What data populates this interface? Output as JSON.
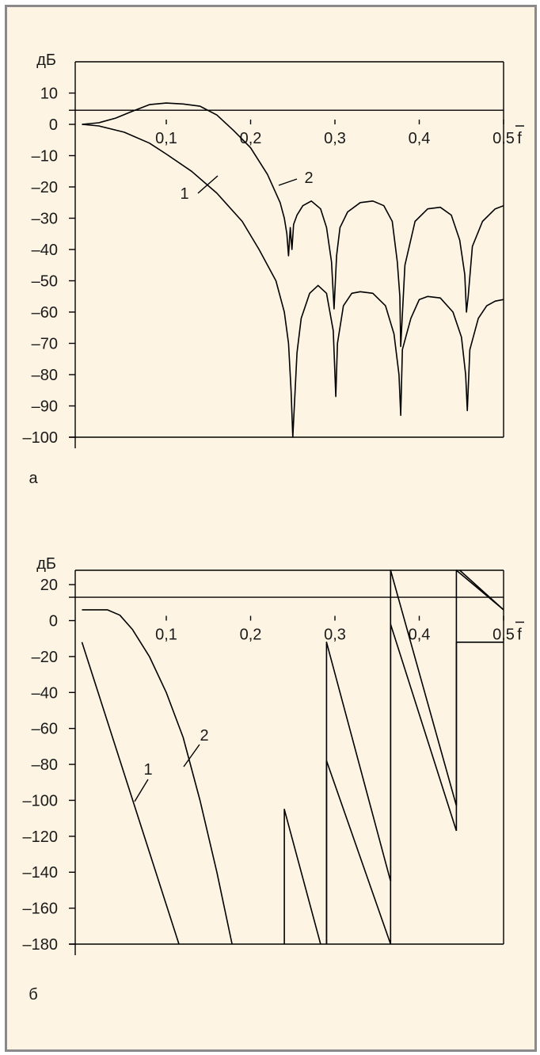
{
  "chart_data": [
    {
      "type": "line",
      "panel_label": "а",
      "ylabel": "дБ",
      "xlabel": "f",
      "x_ticks": [
        "0,1",
        "0,2",
        "0,3",
        "0,4",
        "0,5"
      ],
      "x_tick_values": [
        0.1,
        0.2,
        0.3,
        0.4,
        0.5
      ],
      "y_ticks": [
        "10",
        "0",
        "–10",
        "–20",
        "–30",
        "–40",
        "–50",
        "–60",
        "–70",
        "–80",
        "–90",
        "–100"
      ],
      "y_tick_values": [
        10,
        0,
        -10,
        -20,
        -30,
        -40,
        -50,
        -60,
        -70,
        -80,
        -90,
        -100
      ],
      "xlim": [
        -0.008,
        0.5
      ],
      "ylim": [
        -100,
        20
      ],
      "reference_level": 4.5,
      "series": [
        {
          "name": "1",
          "x": [
            0,
            0.02,
            0.05,
            0.08,
            0.1,
            0.13,
            0.16,
            0.19,
            0.21,
            0.23,
            0.24,
            0.245,
            0.248,
            0.25,
            0.255,
            0.26,
            0.27,
            0.28,
            0.29,
            0.298,
            0.301,
            0.303,
            0.31,
            0.32,
            0.33,
            0.345,
            0.36,
            0.37,
            0.376,
            0.378,
            0.38,
            0.39,
            0.4,
            0.41,
            0.425,
            0.44,
            0.45,
            0.455,
            0.457,
            0.46,
            0.47,
            0.48,
            0.49,
            0.5
          ],
          "y": [
            0,
            -0.5,
            -2.5,
            -6,
            -9.5,
            -15,
            -22,
            -31,
            -40,
            -50,
            -60,
            -70,
            -85,
            -100,
            -73,
            -62,
            -54,
            -51.5,
            -54,
            -66,
            -87,
            -70,
            -58,
            -54,
            -53.5,
            -54,
            -58,
            -67,
            -80,
            -93,
            -72,
            -62,
            -56,
            -55,
            -55.5,
            -60,
            -68,
            -80,
            -91.5,
            -72,
            -62,
            -58,
            -56.5,
            -56
          ]
        },
        {
          "name": "2",
          "x": [
            0,
            0.02,
            0.04,
            0.06,
            0.08,
            0.1,
            0.12,
            0.14,
            0.16,
            0.18,
            0.2,
            0.22,
            0.235,
            0.24,
            0.243,
            0.245,
            0.247,
            0.249,
            0.251,
            0.255,
            0.262,
            0.272,
            0.283,
            0.29,
            0.296,
            0.299,
            0.302,
            0.306,
            0.315,
            0.33,
            0.345,
            0.358,
            0.368,
            0.374,
            0.377,
            0.378,
            0.383,
            0.395,
            0.41,
            0.425,
            0.438,
            0.448,
            0.454,
            0.456,
            0.458,
            0.463,
            0.475,
            0.49,
            0.5
          ],
          "y": [
            0,
            0.5,
            2,
            4.2,
            6.3,
            6.8,
            6.5,
            5.8,
            3,
            -2,
            -7.5,
            -16,
            -25,
            -30,
            -35,
            -42,
            -33,
            -40,
            -32,
            -29,
            -26,
            -24.5,
            -27,
            -33,
            -44,
            -59,
            -42,
            -33,
            -28,
            -25,
            -24.5,
            -26,
            -31,
            -44,
            -55,
            -71,
            -45,
            -31,
            -27,
            -26.5,
            -29,
            -37,
            -48,
            -60,
            -55,
            -39,
            -31,
            -27,
            -26
          ]
        }
      ],
      "curve_labels": [
        "1",
        "2"
      ]
    },
    {
      "type": "line",
      "panel_label": "б",
      "ylabel": "дБ",
      "xlabel": "f",
      "x_ticks": [
        "0,1",
        "0,2",
        "0,3",
        "0,4",
        "0,5"
      ],
      "x_tick_values": [
        0.1,
        0.2,
        0.3,
        0.4,
        0.5
      ],
      "y_ticks": [
        "20",
        "0",
        "–20",
        "–40",
        "–60",
        "–80",
        "–100",
        "–120",
        "–140",
        "–160",
        "–180"
      ],
      "y_tick_values": [
        20,
        0,
        -20,
        -40,
        -60,
        -80,
        -100,
        -120,
        -140,
        -160,
        -180
      ],
      "xlim": [
        -0.008,
        0.5
      ],
      "ylim": [
        -180,
        28
      ],
      "reference_level": 13,
      "series": [
        {
          "name": "1",
          "segments": [
            {
              "x": [
                0,
                0.115
              ],
              "y": [
                -12,
                -180
              ]
            },
            {
              "x": [
                0.24,
                0.24,
                0.283
              ],
              "y": [
                -180,
                -105,
                -180
              ]
            },
            {
              "x": [
                0.29,
                0.29,
                0.366
              ],
              "y": [
                -180,
                -78,
                -180
              ]
            },
            {
              "x": [
                0.366,
                0.366,
                0.444
              ],
              "y": [
                -180,
                -2,
                -117
              ]
            },
            {
              "x": [
                0.444,
                0.444,
                0.5
              ],
              "y": [
                -117,
                28,
                6
              ]
            }
          ]
        },
        {
          "name": "2",
          "segments": [
            {
              "x": [
                0,
                0.03,
                0.045,
                0.06,
                0.08,
                0.1,
                0.12,
                0.14,
                0.16,
                0.178
              ],
              "y": [
                6,
                6,
                3,
                -5,
                -20,
                -40,
                -65,
                -100,
                -140,
                -180
              ]
            },
            {
              "x": [
                0.29,
                0.29,
                0.366
              ],
              "y": [
                -180,
                -12,
                -145
              ]
            },
            {
              "x": [
                0.366,
                0.366,
                0.444
              ],
              "y": [
                -145,
                28,
                -103
              ]
            },
            {
              "x": [
                0.444,
                0.444,
                0.5
              ],
              "y": [
                -103,
                -12,
                -12
              ]
            },
            {
              "x": [
                0.448,
                0.5
              ],
              "y": [
                28,
                6
              ]
            }
          ]
        }
      ],
      "curve_labels": [
        "1",
        "2"
      ]
    }
  ]
}
